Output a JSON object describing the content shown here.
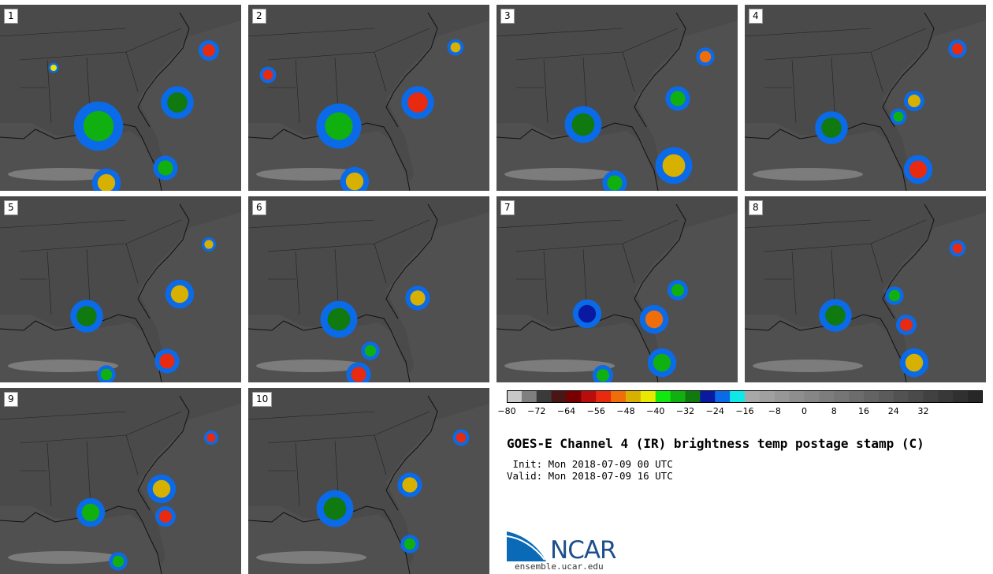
{
  "title": "GOES-E Channel 4 (IR) brightness temp postage stamp (C)",
  "init": " Init: Mon 2018-07-09 00 UTC",
  "valid": "Valid: Mon 2018-07-09 16 UTC",
  "members": [
    "1",
    "2",
    "3",
    "4",
    "5",
    "6",
    "7",
    "8",
    "9",
    "10"
  ],
  "colorbar": {
    "colors": [
      "#c8c8c8",
      "#7f7f7f",
      "#3a3a3a",
      "#4a1515",
      "#780000",
      "#b80d0d",
      "#e82a10",
      "#f06e0a",
      "#d8b000",
      "#e8e800",
      "#10e810",
      "#10b010",
      "#107a10",
      "#0a1aa0",
      "#0a6ae8",
      "#10e8e8",
      "#a8a8a8",
      "#a0a0a0",
      "#979797",
      "#8e8e8e",
      "#868686",
      "#7d7d7d",
      "#757575",
      "#6c6c6c",
      "#636363",
      "#5b5b5b",
      "#525252",
      "#4a4a4a",
      "#414141",
      "#383838",
      "#303030",
      "#272727"
    ],
    "ticks": [
      "−80",
      "−72",
      "−64",
      "−56",
      "−48",
      "−40",
      "−32",
      "−24",
      "−16",
      "−8",
      "0",
      "8",
      "16",
      "24",
      "32"
    ]
  },
  "logo": {
    "text": "NCAR",
    "url": "ensemble.ucar.edu"
  }
}
